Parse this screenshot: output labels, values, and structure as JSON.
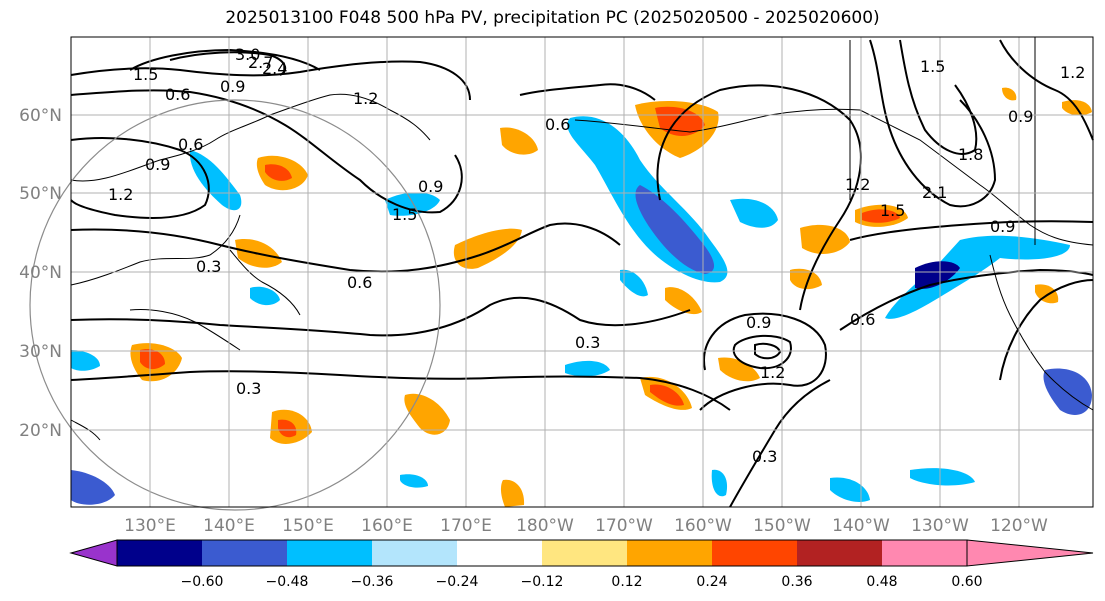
{
  "title": "2025013100 F048 500 hPa PV, precipitation PC (2025020500 - 2025020600)",
  "map": {
    "lat_labels": [
      "60°N",
      "50°N",
      "40°N",
      "30°N",
      "20°N"
    ],
    "lon_labels": [
      "130°E",
      "140°E",
      "150°E",
      "160°E",
      "170°E",
      "180°W",
      "170°W",
      "160°W",
      "150°W",
      "140°W",
      "130°W",
      "120°W"
    ],
    "contour_labels": [
      "3.0",
      "2.7",
      "2.4",
      "1.5",
      "1.2",
      "0.9",
      "0.6",
      "0.3",
      "0.6",
      "0.9",
      "1.2",
      "1.5",
      "0.9",
      "0.6",
      "0.3",
      "0.9",
      "0.3",
      "1.2",
      "1.5",
      "1.8",
      "2.1",
      "0.6",
      "0.9",
      "0.3",
      "1.2",
      "1.5",
      "1.2",
      "0.9",
      "0.6"
    ]
  },
  "colorbar": {
    "ticks": [
      "−0.60",
      "−0.48",
      "−0.36",
      "−0.24",
      "−0.12",
      "0.12",
      "0.24",
      "0.36",
      "0.48",
      "0.60"
    ],
    "colors": [
      "#9933cc",
      "#00008b",
      "#3b5bd0",
      "#00bfff",
      "#b3e5fc",
      "#ffffff",
      "#ffe680",
      "#ffa500",
      "#ff4500",
      "#b22222",
      "#ff88b0"
    ]
  }
}
